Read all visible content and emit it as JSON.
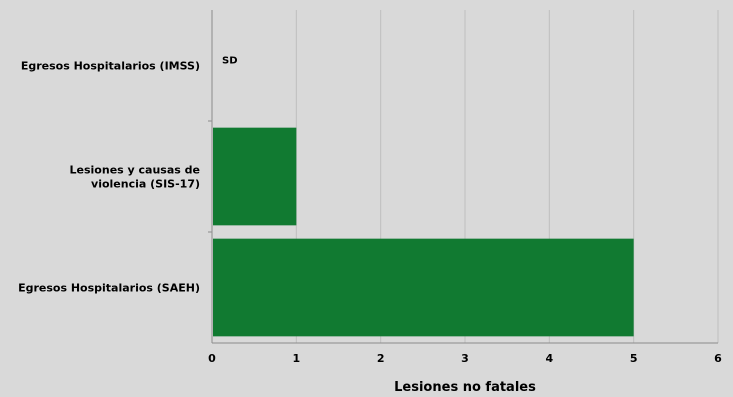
{
  "chart_data": {
    "type": "bar",
    "orientation": "horizontal",
    "categories": [
      [
        "Egresos Hospitalarios (IMSS)"
      ],
      [
        "Lesiones y causas de",
        "violencia (SIS-17)"
      ],
      [
        "Egresos Hospitalarios (SAEH)"
      ]
    ],
    "values": [
      null,
      1,
      5
    ],
    "data_labels": [
      "SD",
      "",
      ""
    ],
    "xlabel": "Lesiones no fatales",
    "ylabel": "",
    "xlim": [
      0,
      6
    ],
    "xticks": [
      "0",
      "1",
      "2",
      "3",
      "4",
      "5",
      "6"
    ],
    "grid": true,
    "legend": "none",
    "colors": {
      "bar": "#117a31",
      "plot_background": "#d9d9d9",
      "gridline": "#bfbfbf",
      "axis": "#8c8c8c"
    }
  }
}
